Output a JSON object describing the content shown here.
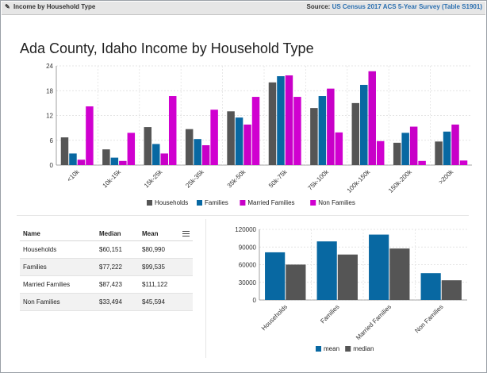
{
  "header": {
    "title": "Income by Household Type",
    "source_label": "Source:",
    "source_link": "US Census 2017 ACS 5-Year Survey (Table S1901)"
  },
  "main_chart": {
    "title": "Ada County, Idaho Income by Household Type"
  },
  "table": {
    "columns": [
      "Name",
      "Median",
      "Mean"
    ],
    "rows": [
      [
        "Households",
        "$60,151",
        "$80,990"
      ],
      [
        "Families",
        "$77,222",
        "$99,535"
      ],
      [
        "Married Families",
        "$87,423",
        "$111,122"
      ],
      [
        "Non Families",
        "$33,494",
        "$45,594"
      ]
    ]
  },
  "chart_data": [
    {
      "type": "bar",
      "title": "Ada County, Idaho Income by Household Type",
      "categories": [
        "<10k",
        "10k-15k",
        "15k-25k",
        "25k-35k",
        "35k-50k",
        "50k-75k",
        "75k-100k",
        "100k-150k",
        "150k-200k",
        ">200k"
      ],
      "series": [
        {
          "name": "Households",
          "color": "#555555",
          "values": [
            6.7,
            3.8,
            9.2,
            8.7,
            13.0,
            20.0,
            13.8,
            15.0,
            5.4,
            5.7
          ]
        },
        {
          "name": "Families",
          "color": "#0868a2",
          "values": [
            2.8,
            1.8,
            5.1,
            6.3,
            11.5,
            21.5,
            16.7,
            19.4,
            7.8,
            8.1
          ]
        },
        {
          "name": "Married Families",
          "color": "#c800c8",
          "values": [
            1.3,
            1.0,
            2.8,
            4.8,
            9.8,
            21.7,
            18.5,
            22.7,
            9.3,
            9.8
          ]
        },
        {
          "name": "Non Families",
          "color": "#d000d0",
          "values": [
            14.2,
            7.8,
            16.7,
            13.4,
            16.5,
            16.5,
            7.9,
            5.8,
            1.0,
            1.1
          ]
        }
      ],
      "ylim": [
        0,
        24
      ],
      "yticks": [
        0,
        6,
        12,
        18,
        24
      ],
      "legend_position": "bottom",
      "grid": true
    },
    {
      "type": "bar",
      "categories": [
        "Households",
        "Families",
        "Married Families",
        "Non Families"
      ],
      "series": [
        {
          "name": "mean",
          "color": "#0868a2",
          "values": [
            80990,
            99535,
            111122,
            45594
          ]
        },
        {
          "name": "median",
          "color": "#555555",
          "values": [
            60151,
            77222,
            87423,
            33494
          ]
        }
      ],
      "ylim": [
        0,
        120000
      ],
      "yticks": [
        0,
        30000,
        60000,
        90000,
        120000
      ],
      "legend_position": "bottom",
      "grid": true
    }
  ]
}
